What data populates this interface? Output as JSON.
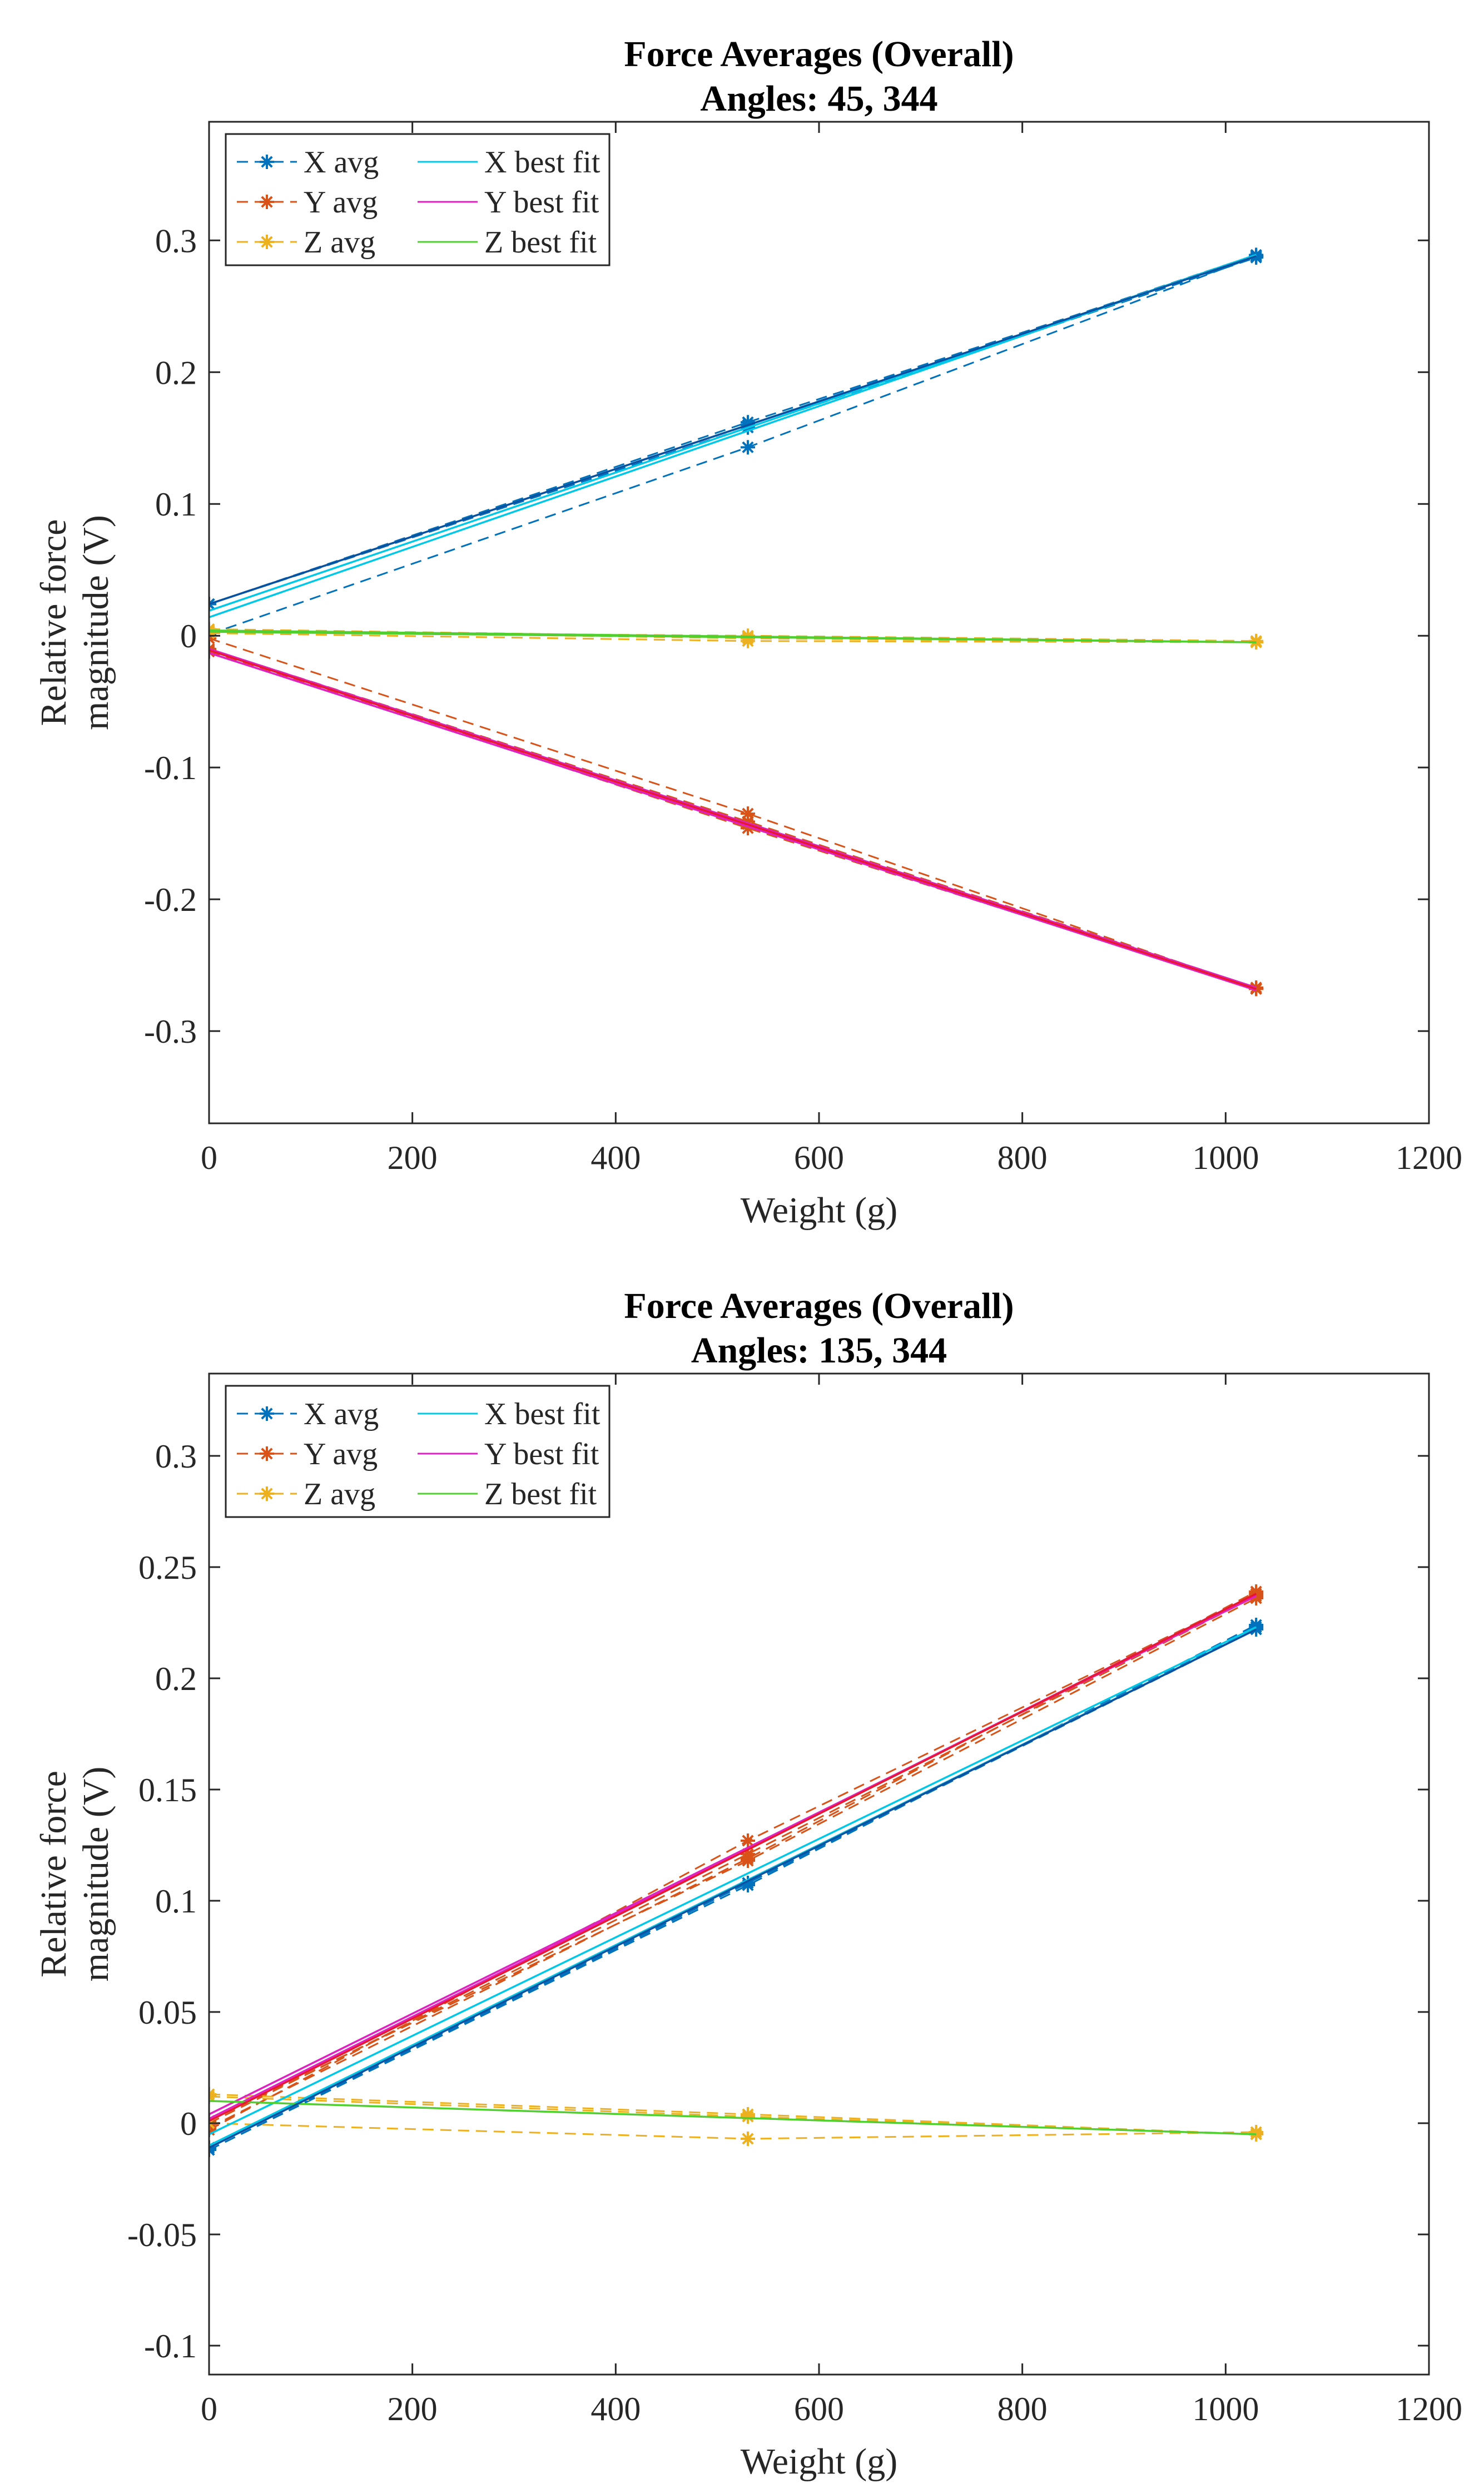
{
  "chart_data": [
    {
      "type": "line",
      "title": "Force Averages (Overall)",
      "subtitle": "Angles: 45, 344",
      "xlabel": "Weight (g)",
      "ylabel": "Relative force magnitude (V)",
      "xlim": [
        0,
        1200
      ],
      "ylim": [
        -0.37,
        0.39
      ],
      "xticks": [
        0,
        200,
        400,
        600,
        800,
        1000,
        1200
      ],
      "yticks": [
        -0.3,
        -0.2,
        -0.1,
        0,
        0.1,
        0.2,
        0.3
      ],
      "ytick_labels": [
        "-0.3",
        "-0.2",
        "-0.1",
        "0",
        "0.1",
        "0.2",
        "0.3"
      ],
      "grid": false,
      "legend_position": "top-left",
      "legend_columns": 2,
      "legend": [
        "X avg",
        "Y avg",
        "Z avg",
        "X best fit",
        "Y best fit",
        "Z best fit"
      ],
      "series": [
        {
          "name": "X avg",
          "style": "dashed-marker",
          "color": "#0072BD",
          "runs": [
            {
              "x": [
                0,
                530,
                1030
              ],
              "y": [
                0.024,
                0.162,
                0.288
              ]
            },
            {
              "x": [
                0,
                530,
                1030
              ],
              "y": [
                0.024,
                0.158,
                0.287
              ]
            },
            {
              "x": [
                0,
                530,
                1030
              ],
              "y": [
                0.024,
                0.16,
                0.289
              ]
            },
            {
              "x": [
                0,
                530,
                1030
              ],
              "y": [
                0.001,
                0.143,
                0.288
              ]
            }
          ]
        },
        {
          "name": "Y avg",
          "style": "dashed-marker",
          "color": "#D95319",
          "runs": [
            {
              "x": [
                0,
                530,
                1030
              ],
              "y": [
                -0.011,
                -0.146,
                -0.268
              ]
            },
            {
              "x": [
                0,
                530,
                1030
              ],
              "y": [
                -0.012,
                -0.143,
                -0.268
              ]
            },
            {
              "x": [
                0,
                530,
                1030
              ],
              "y": [
                -0.01,
                -0.141,
                -0.267
              ]
            },
            {
              "x": [
                0,
                530,
                1030
              ],
              "y": [
                -0.002,
                -0.135,
                -0.268
              ]
            }
          ]
        },
        {
          "name": "Z avg",
          "style": "dashed-marker",
          "color": "#EDB120",
          "runs": [
            {
              "x": [
                0,
                530,
                1030
              ],
              "y": [
                0.005,
                -0.001,
                -0.005
              ]
            },
            {
              "x": [
                0,
                530,
                1030
              ],
              "y": [
                0.004,
                -0.002,
                -0.005
              ]
            },
            {
              "x": [
                0,
                530,
                1030
              ],
              "y": [
                0.003,
                0.0,
                -0.004
              ]
            },
            {
              "x": [
                0,
                530,
                1030
              ],
              "y": [
                0.002,
                -0.004,
                -0.005
              ]
            }
          ]
        },
        {
          "name": "X best fit",
          "style": "solid",
          "color": "#00C8E8",
          "runs": [
            {
              "x": [
                0,
                1030
              ],
              "y": [
                0.019,
                0.289
              ]
            },
            {
              "x": [
                0,
                1030
              ],
              "y": [
                0.024,
                0.288
              ]
            },
            {
              "x": [
                0,
                1030
              ],
              "y": [
                0.014,
                0.289
              ]
            }
          ]
        },
        {
          "name": "Y best fit",
          "style": "solid",
          "color": "#E020C0",
          "runs": [
            {
              "x": [
                0,
                1030
              ],
              "y": [
                -0.011,
                -0.268
              ]
            },
            {
              "x": [
                0,
                1030
              ],
              "y": [
                -0.013,
                -0.269
              ]
            },
            {
              "x": [
                0,
                1030
              ],
              "y": [
                -0.01,
                -0.267
              ]
            }
          ]
        },
        {
          "name": "Z best fit",
          "style": "solid",
          "color": "#50D030",
          "runs": [
            {
              "x": [
                0,
                1030
              ],
              "y": [
                0.004,
                -0.005
              ]
            },
            {
              "x": [
                0,
                1030
              ],
              "y": [
                0.003,
                -0.005
              ]
            }
          ]
        },
        {
          "name": "",
          "style": "solid",
          "color": "#0A4FA0",
          "runs": [
            {
              "x": [
                0,
                1030
              ],
              "y": [
                0.024,
                0.288
              ]
            }
          ]
        },
        {
          "name": "",
          "style": "solid",
          "color": "#E8192C",
          "runs": [
            {
              "x": [
                0,
                1030
              ],
              "y": [
                -0.011,
                -0.268
              ]
            }
          ]
        }
      ]
    },
    {
      "type": "line",
      "title": "Force Averages (Overall)",
      "subtitle": "Angles: 135, 344",
      "xlabel": "Weight (g)",
      "ylabel": "Relative force magnitude (V)",
      "xlim": [
        0,
        1200
      ],
      "ylim": [
        -0.113,
        0.337
      ],
      "xticks": [
        0,
        200,
        400,
        600,
        800,
        1000,
        1200
      ],
      "yticks": [
        -0.1,
        -0.05,
        0,
        0.05,
        0.1,
        0.15,
        0.2,
        0.25,
        0.3
      ],
      "ytick_labels": [
        "-0.1",
        "-0.05",
        "0",
        "0.05",
        "0.1",
        "0.15",
        "0.2",
        "0.25",
        "0.3"
      ],
      "grid": false,
      "legend_position": "top-left",
      "legend_columns": 2,
      "legend": [
        "X avg",
        "Y avg",
        "Z avg",
        "X best fit",
        "Y best fit",
        "Z best fit"
      ],
      "series": [
        {
          "name": "X avg",
          "style": "dashed-marker",
          "color": "#0072BD",
          "runs": [
            {
              "x": [
                0,
                530,
                1030
              ],
              "y": [
                -0.012,
                0.108,
                0.223
              ]
            },
            {
              "x": [
                0,
                530,
                1030
              ],
              "y": [
                -0.012,
                0.107,
                0.224
              ]
            },
            {
              "x": [
                0,
                530,
                1030
              ],
              "y": [
                -0.011,
                0.108,
                0.222
              ]
            }
          ]
        },
        {
          "name": "Y avg",
          "style": "dashed-marker",
          "color": "#D95319",
          "runs": [
            {
              "x": [
                0,
                530,
                1030
              ],
              "y": [
                -0.003,
                0.127,
                0.238
              ]
            },
            {
              "x": [
                0,
                530,
                1030
              ],
              "y": [
                0.0,
                0.121,
                0.237
              ]
            },
            {
              "x": [
                0,
                530,
                1030
              ],
              "y": [
                -0.002,
                0.119,
                0.239
              ]
            },
            {
              "x": [
                0,
                530,
                1030
              ],
              "y": [
                0.001,
                0.118,
                0.236
              ]
            }
          ]
        },
        {
          "name": "Z avg",
          "style": "dashed-marker",
          "color": "#EDB120",
          "runs": [
            {
              "x": [
                0,
                530,
                1030
              ],
              "y": [
                0.013,
                0.004,
                -0.005
              ]
            },
            {
              "x": [
                0,
                530,
                1030
              ],
              "y": [
                0.012,
                0.003,
                -0.005
              ]
            },
            {
              "x": [
                0,
                530,
                1030
              ],
              "y": [
                0.0,
                -0.007,
                -0.004
              ]
            }
          ]
        },
        {
          "name": "X best fit",
          "style": "solid",
          "color": "#00C8E8",
          "runs": [
            {
              "x": [
                0,
                1030
              ],
              "y": [
                -0.005,
                0.223
              ]
            },
            {
              "x": [
                0,
                1030
              ],
              "y": [
                -0.01,
                0.222
              ]
            }
          ]
        },
        {
          "name": "Y best fit",
          "style": "solid",
          "color": "#E020C0",
          "runs": [
            {
              "x": [
                0,
                1030
              ],
              "y": [
                0.004,
                0.237
              ]
            },
            {
              "x": [
                0,
                1030
              ],
              "y": [
                0.002,
                0.238
              ]
            }
          ]
        },
        {
          "name": "Z best fit",
          "style": "solid",
          "color": "#50D030",
          "runs": [
            {
              "x": [
                0,
                1030
              ],
              "y": [
                0.01,
                -0.005
              ]
            }
          ]
        },
        {
          "name": "",
          "style": "solid",
          "color": "#0A4FA0",
          "runs": [
            {
              "x": [
                0,
                1030
              ],
              "y": [
                -0.011,
                0.222
              ]
            }
          ]
        },
        {
          "name": "",
          "style": "solid",
          "color": "#E8192C",
          "runs": [
            {
              "x": [
                0,
                1030
              ],
              "y": [
                0.001,
                0.238
              ]
            }
          ]
        }
      ]
    }
  ]
}
